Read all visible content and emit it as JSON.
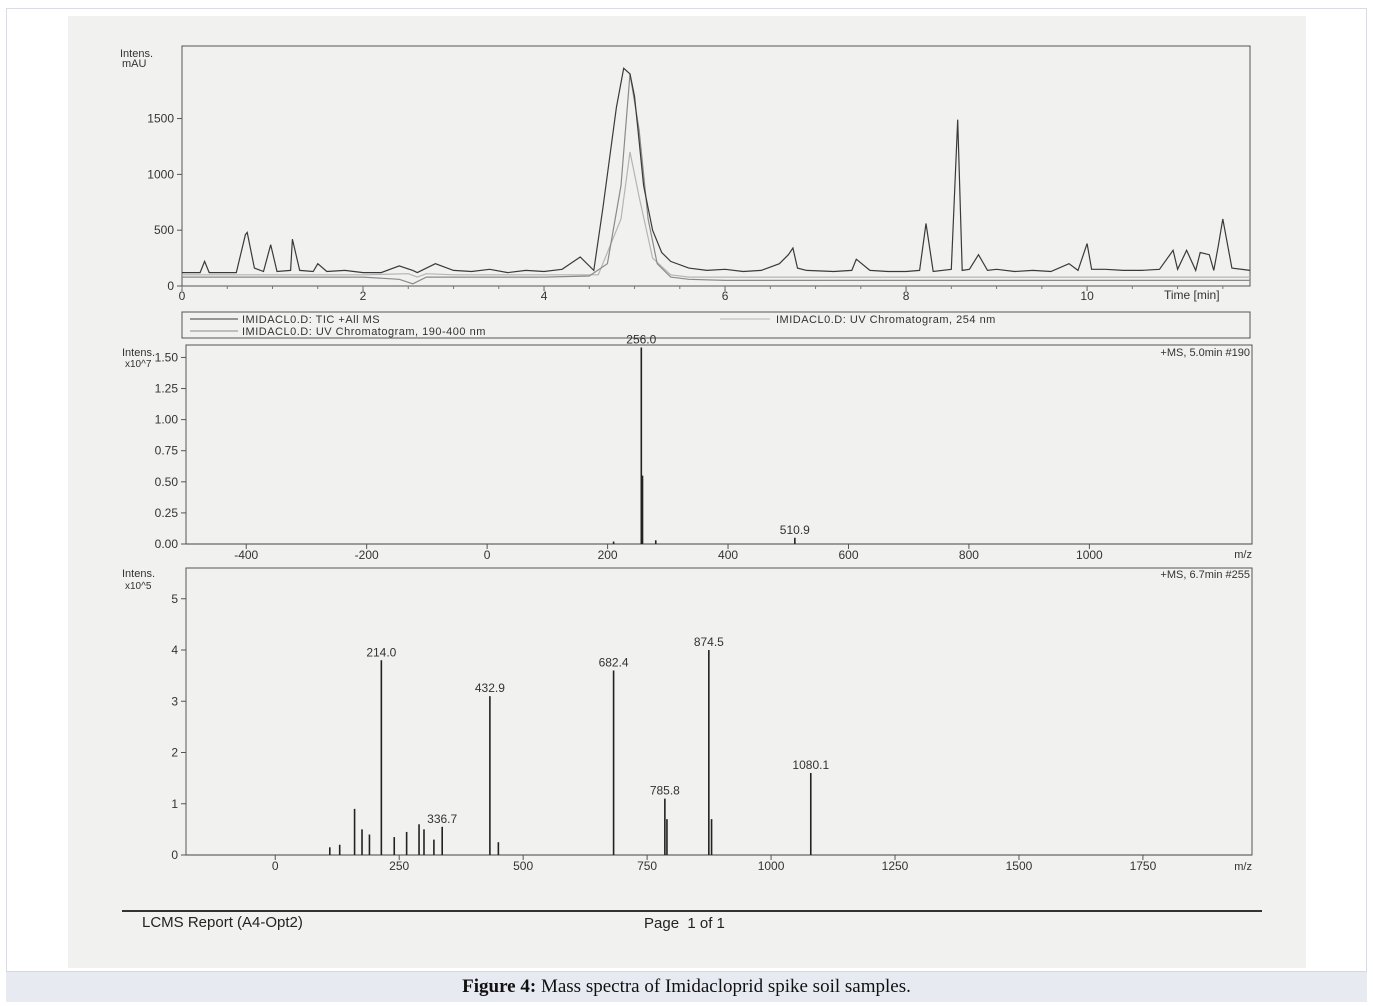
{
  "caption": {
    "label": "Figure 4:",
    "text": "Mass spectra of Imidacloprid spike soil samples."
  },
  "report": {
    "footer_left": "LCMS Report (A4-Opt2)",
    "footer_page": "Page  1 of 1"
  },
  "chart_data": [
    {
      "type": "line",
      "ylabel_line1": "Intens.",
      "ylabel_line2": "mAU",
      "xlabel": "Time [min]",
      "xlim": [
        0,
        11.8
      ],
      "ylim": [
        0,
        2150
      ],
      "x_ticks": [
        "0",
        "2",
        "4",
        "6",
        "8",
        "10"
      ],
      "y_ticks": [
        "0",
        "500",
        "1000",
        "1500"
      ],
      "legend": [
        "IMIDACL0.D: TIC +All MS",
        "IMIDACL0.D: UV Chromatogram, 190-400 nm",
        "IMIDACL0.D: UV Chromatogram, 254 nm"
      ],
      "series": [
        {
          "name": "IMIDACL0.D: TIC +All MS",
          "color": "#3a3a3a",
          "x": [
            0,
            0.2,
            0.25,
            0.3,
            0.6,
            0.7,
            0.72,
            0.8,
            0.9,
            0.98,
            1.05,
            1.2,
            1.22,
            1.3,
            1.45,
            1.5,
            1.6,
            1.8,
            2.0,
            2.2,
            2.4,
            2.55,
            2.6,
            2.8,
            3.0,
            3.2,
            3.4,
            3.6,
            3.8,
            4.0,
            4.2,
            4.4,
            4.55,
            4.65,
            4.8,
            4.88,
            4.95,
            5.0,
            5.05,
            5.1,
            5.2,
            5.3,
            5.4,
            5.6,
            5.8,
            6.0,
            6.2,
            6.4,
            6.6,
            6.7,
            6.75,
            6.8,
            6.9,
            7.2,
            7.4,
            7.45,
            7.6,
            7.8,
            8.0,
            8.15,
            8.22,
            8.3,
            8.5,
            8.57,
            8.62,
            8.7,
            8.8,
            8.9,
            9.0,
            9.2,
            9.4,
            9.6,
            9.8,
            9.9,
            10.0,
            10.05,
            10.2,
            10.4,
            10.6,
            10.8,
            10.95,
            11.0,
            11.1,
            11.2,
            11.25,
            11.35,
            11.4,
            11.45,
            11.5,
            11.6,
            11.8
          ],
          "y": [
            120,
            120,
            220,
            120,
            120,
            460,
            480,
            160,
            130,
            370,
            130,
            140,
            420,
            140,
            130,
            200,
            130,
            140,
            120,
            120,
            180,
            140,
            120,
            200,
            140,
            130,
            150,
            120,
            140,
            130,
            150,
            260,
            140,
            700,
            1600,
            1950,
            1900,
            1700,
            1300,
            900,
            500,
            300,
            220,
            160,
            140,
            150,
            130,
            140,
            200,
            280,
            340,
            160,
            140,
            130,
            140,
            240,
            140,
            130,
            130,
            140,
            560,
            130,
            150,
            1490,
            140,
            150,
            280,
            140,
            150,
            130,
            140,
            130,
            200,
            140,
            380,
            150,
            150,
            140,
            140,
            150,
            320,
            150,
            320,
            140,
            300,
            280,
            140,
            360,
            600,
            160,
            140
          ]
        },
        {
          "name": "IMIDACL0.D: UV Chromatogram, 190-400 nm",
          "color": "#8a8a8a",
          "x": [
            0,
            1.0,
            2.0,
            2.4,
            2.55,
            2.7,
            3.0,
            4.0,
            4.5,
            4.7,
            4.85,
            4.95,
            5.05,
            5.15,
            5.25,
            5.4,
            5.6,
            6.0,
            8.0,
            10.0,
            11.8
          ],
          "y": [
            80,
            80,
            80,
            60,
            20,
            80,
            80,
            80,
            90,
            200,
            900,
            1900,
            1400,
            600,
            200,
            80,
            60,
            50,
            50,
            50,
            50
          ]
        },
        {
          "name": "IMIDACL0.D: UV Chromatogram, 254 nm",
          "color": "#b5b5b5",
          "x": [
            0,
            2.0,
            2.5,
            2.6,
            2.7,
            3.0,
            4.6,
            4.85,
            4.95,
            5.05,
            5.2,
            5.4,
            5.6,
            6.0,
            11.8
          ],
          "y": [
            100,
            100,
            110,
            80,
            110,
            100,
            100,
            600,
            1200,
            800,
            250,
            100,
            80,
            80,
            80
          ]
        }
      ]
    },
    {
      "type": "bar",
      "ylabel_line1": "Intens.",
      "ylabel_line2": "x10^7",
      "xlabel": "m/z",
      "annotation": "+MS, 5.0min #190",
      "xlim": [
        -500,
        1270
      ],
      "ylim": [
        0,
        1.6
      ],
      "x_ticks": [
        "-400",
        "-200",
        "0",
        "200",
        "400",
        "600",
        "800",
        "1000"
      ],
      "y_ticks": [
        "0.00",
        "0.25",
        "0.50",
        "0.75",
        "1.00",
        "1.25",
        "1.50"
      ],
      "peaks": [
        {
          "x": 256.0,
          "y": 1.58,
          "label": "256.0"
        },
        {
          "x": 258.0,
          "y": 0.55,
          "label": ""
        },
        {
          "x": 280.0,
          "y": 0.03,
          "label": ""
        },
        {
          "x": 210.0,
          "y": 0.02,
          "label": ""
        },
        {
          "x": 510.9,
          "y": 0.05,
          "label": "510.9"
        }
      ]
    },
    {
      "type": "bar",
      "ylabel_line1": "Intens.",
      "ylabel_line2": "x10^5",
      "xlabel": "m/z",
      "annotation": "+MS, 6.7min #255",
      "xlim": [
        -180,
        1970
      ],
      "ylim": [
        0,
        5.6
      ],
      "x_ticks": [
        "0",
        "250",
        "500",
        "750",
        "1000",
        "1250",
        "1500",
        "1750"
      ],
      "y_ticks": [
        "0",
        "1",
        "2",
        "3",
        "4",
        "5"
      ],
      "peaks": [
        {
          "x": 214.0,
          "y": 3.8,
          "label": "214.0"
        },
        {
          "x": 336.7,
          "y": 0.55,
          "label": "336.7"
        },
        {
          "x": 432.9,
          "y": 3.1,
          "label": "432.9"
        },
        {
          "x": 682.4,
          "y": 3.6,
          "label": "682.4"
        },
        {
          "x": 785.8,
          "y": 1.1,
          "label": "785.8"
        },
        {
          "x": 874.5,
          "y": 4.0,
          "label": "874.5"
        },
        {
          "x": 1080.1,
          "y": 1.6,
          "label": "1080.1"
        },
        {
          "x": 160,
          "y": 0.9,
          "label": ""
        },
        {
          "x": 175,
          "y": 0.5,
          "label": ""
        },
        {
          "x": 190,
          "y": 0.4,
          "label": ""
        },
        {
          "x": 240,
          "y": 0.35,
          "label": ""
        },
        {
          "x": 265,
          "y": 0.45,
          "label": ""
        },
        {
          "x": 290,
          "y": 0.6,
          "label": ""
        },
        {
          "x": 300,
          "y": 0.5,
          "label": ""
        },
        {
          "x": 320,
          "y": 0.3,
          "label": ""
        },
        {
          "x": 790,
          "y": 0.7,
          "label": ""
        },
        {
          "x": 880,
          "y": 0.7,
          "label": ""
        },
        {
          "x": 450,
          "y": 0.25,
          "label": ""
        },
        {
          "x": 130,
          "y": 0.2,
          "label": ""
        },
        {
          "x": 110,
          "y": 0.15,
          "label": ""
        }
      ]
    }
  ]
}
